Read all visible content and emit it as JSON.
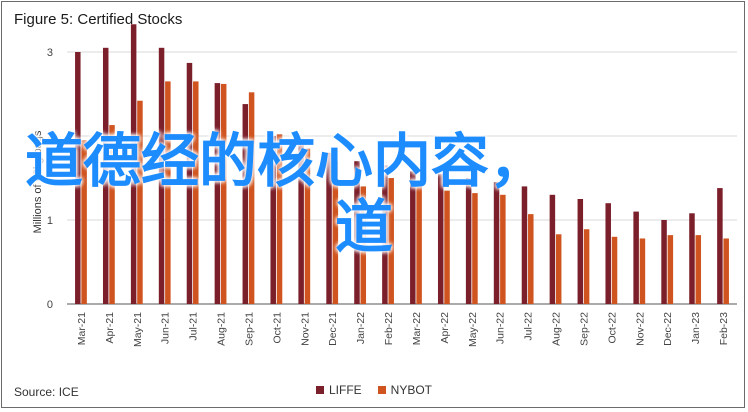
{
  "figure": {
    "title": "Figure 5: Certified Stocks",
    "source": "Source: ICE",
    "overlay_text_line1": "道德经的核心内容，",
    "overlay_text_line2": "道"
  },
  "chart_data": {
    "type": "bar",
    "title": "Figure 5: Certified Stocks",
    "ylabel": "Millions of 60kg bags",
    "xlabel": "",
    "ylim": [
      0,
      3
    ],
    "yticks": [
      0,
      1,
      2,
      3
    ],
    "grid": true,
    "legend_position": "bottom",
    "categories": [
      "Mar-21",
      "Apr-21",
      "May-21",
      "Jun-21",
      "Jul-21",
      "Aug-21",
      "Sep-21",
      "Oct-21",
      "Nov-21",
      "Dec-21",
      "Jan-22",
      "Feb-22",
      "Mar-22",
      "Apr-22",
      "May-22",
      "Jun-22",
      "Jul-22",
      "Aug-22",
      "Sep-22",
      "Oct-22",
      "Nov-22",
      "Dec-22",
      "Jan-23",
      "Feb-23"
    ],
    "series": [
      {
        "name": "LIFFE",
        "color": "#7b1f2b",
        "values": [
          3.0,
          3.05,
          3.33,
          3.05,
          2.87,
          2.63,
          2.38,
          2.0,
          1.9,
          1.8,
          1.7,
          1.65,
          1.58,
          1.55,
          1.5,
          1.45,
          1.4,
          1.3,
          1.25,
          1.2,
          1.1,
          1.0,
          1.08,
          1.38
        ]
      },
      {
        "name": "NYBOT",
        "color": "#d0541f",
        "values": [
          1.95,
          2.13,
          2.42,
          2.65,
          2.65,
          2.62,
          2.52,
          2.02,
          1.85,
          1.7,
          1.4,
          1.5,
          1.45,
          1.35,
          1.32,
          1.3,
          1.07,
          0.83,
          0.89,
          0.8,
          0.78,
          0.82,
          0.82,
          0.78
        ]
      }
    ]
  }
}
